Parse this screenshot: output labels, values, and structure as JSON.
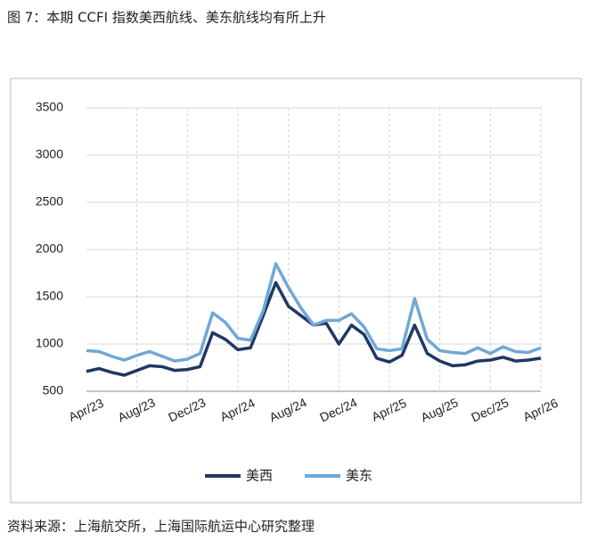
{
  "chart_data": {
    "type": "line",
    "title": "图 7：本期 CCFI 指数美西航线、美东航线均有所上升",
    "source": "资料来源：上海航交所，上海国际航运中心研究整理",
    "categories": [
      "Apr/23",
      null,
      null,
      null,
      "Aug/23",
      null,
      null,
      null,
      "Dec/23",
      null,
      null,
      null,
      "Apr/24",
      null,
      null,
      null,
      "Aug/24",
      null,
      null,
      null,
      "Dec/24",
      null,
      null,
      null,
      "Apr/25",
      null,
      null,
      null,
      "Aug/25",
      null,
      null,
      null,
      "Dec/25",
      null,
      null,
      null,
      "Apr/26"
    ],
    "series": [
      {
        "name": "美西",
        "color": "#1f3864",
        "values": [
          710,
          740,
          700,
          670,
          720,
          770,
          760,
          720,
          730,
          760,
          1120,
          1050,
          940,
          960,
          1300,
          1650,
          1400,
          1300,
          1200,
          1220,
          1000,
          1200,
          1100,
          850,
          810,
          880,
          1200,
          900,
          820,
          770,
          780,
          820,
          830,
          860,
          820,
          830,
          850
        ]
      },
      {
        "name": "美东",
        "color": "#6fa8d6",
        "values": [
          930,
          920,
          870,
          830,
          880,
          920,
          870,
          820,
          840,
          900,
          1330,
          1230,
          1060,
          1040,
          1350,
          1850,
          1600,
          1380,
          1200,
          1250,
          1250,
          1320,
          1180,
          950,
          930,
          950,
          1480,
          1050,
          930,
          910,
          900,
          960,
          900,
          970,
          920,
          910,
          960
        ]
      }
    ],
    "ylim": [
      500,
      3500
    ],
    "yticks": [
      500,
      1000,
      1500,
      2000,
      2500,
      3000,
      3500
    ],
    "grid": true
  }
}
